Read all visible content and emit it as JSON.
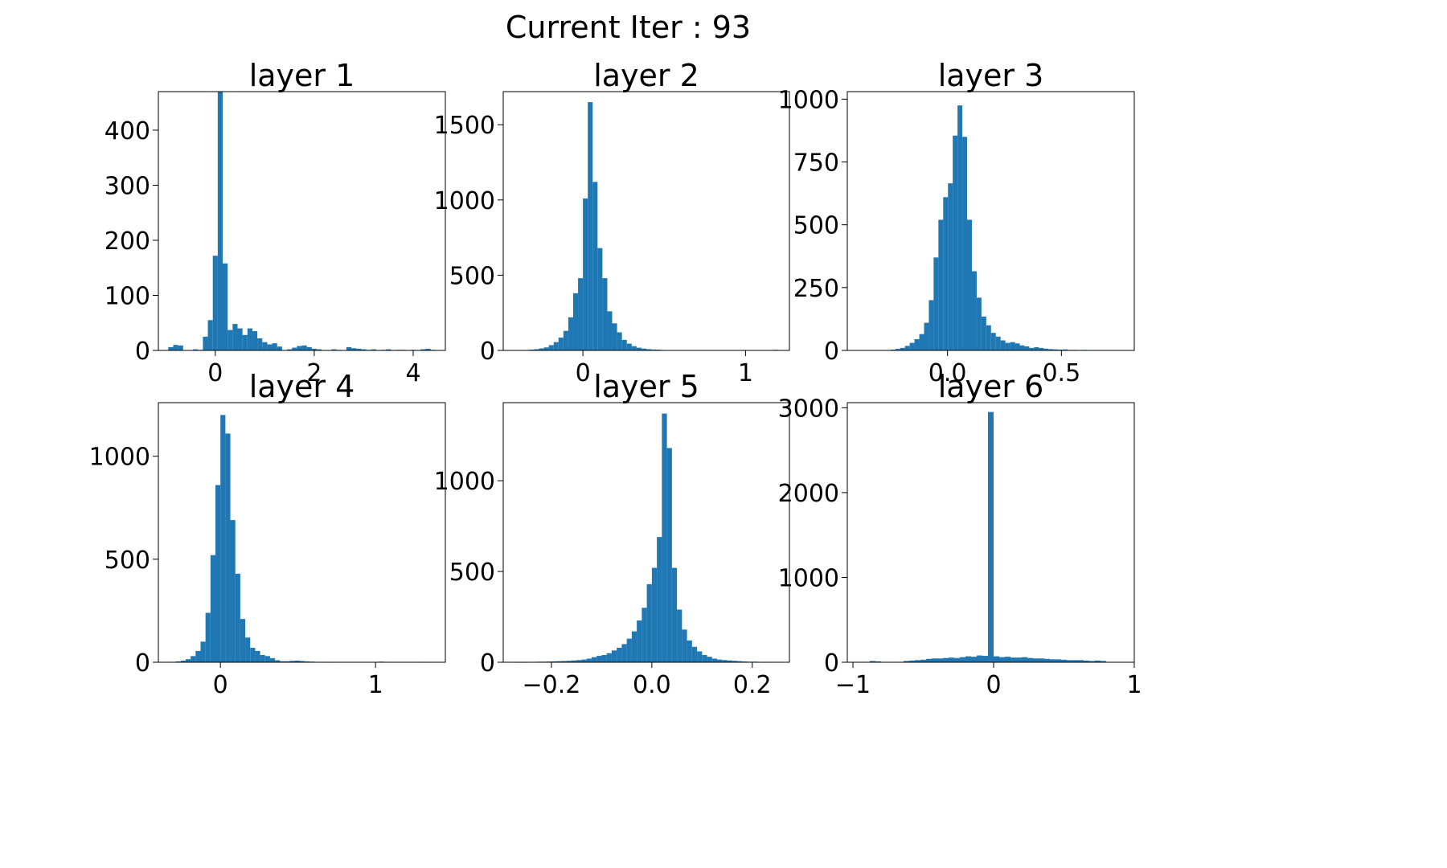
{
  "figure": {
    "suptitle": "Current Iter : 93",
    "bar_color": "#1f77b4"
  },
  "chart_data": [
    {
      "type": "bar",
      "title": "layer 1",
      "xlabel": "",
      "ylabel": "",
      "xlim": [
        -1.15,
        4.65
      ],
      "ylim": [
        0,
        470
      ],
      "xticks": [
        0,
        2,
        4
      ],
      "xtick_labels": [
        "0",
        "2",
        "4"
      ],
      "yticks": [
        0,
        100,
        200,
        300,
        400
      ],
      "ytick_labels": [
        "0",
        "100",
        "200",
        "300",
        "400"
      ],
      "bin_width": 0.1,
      "bin_starts": [
        -0.95,
        -0.85,
        -0.75,
        -0.65,
        -0.55,
        -0.45,
        -0.35,
        -0.25,
        -0.15,
        -0.05,
        0.05,
        0.15,
        0.25,
        0.35,
        0.45,
        0.55,
        0.65,
        0.75,
        0.85,
        0.95,
        1.05,
        1.15,
        1.25,
        1.35,
        1.45,
        1.55,
        1.65,
        1.75,
        1.85,
        1.95,
        2.05,
        2.15,
        2.25,
        2.35,
        2.45,
        2.55,
        2.65,
        2.75,
        2.85,
        2.95,
        3.05,
        3.15,
        3.25,
        3.35,
        3.45,
        3.55,
        3.65,
        3.75,
        3.85,
        3.95,
        4.05,
        4.15,
        4.25,
        4.35
      ],
      "values": [
        6,
        10,
        9,
        0,
        0,
        2,
        1,
        25,
        55,
        172,
        470,
        158,
        37,
        48,
        40,
        28,
        40,
        35,
        22,
        15,
        11,
        13,
        7,
        0,
        2,
        5,
        8,
        9,
        6,
        3,
        2,
        0,
        0,
        2,
        1,
        0,
        6,
        4,
        3,
        2,
        1,
        2,
        0,
        1,
        2,
        0,
        1,
        1,
        0,
        1,
        0,
        2,
        3,
        1
      ]
    },
    {
      "type": "bar",
      "title": "layer 2",
      "xlabel": "",
      "ylabel": "",
      "xlim": [
        -0.49,
        1.27
      ],
      "ylim": [
        0,
        1720
      ],
      "xticks": [
        0,
        1
      ],
      "xtick_labels": [
        "0",
        "1"
      ],
      "yticks": [
        0,
        500,
        1000,
        1500
      ],
      "ytick_labels": [
        "0",
        "500",
        "1000",
        "1500"
      ],
      "bin_width": 0.03,
      "bin_starts": [
        -0.39,
        -0.36,
        -0.33,
        -0.3,
        -0.27,
        -0.24,
        -0.21,
        -0.18,
        -0.15,
        -0.12,
        -0.09,
        -0.06,
        -0.03,
        0.0,
        0.03,
        0.06,
        0.09,
        0.12,
        0.15,
        0.18,
        0.21,
        0.24,
        0.27,
        0.3,
        0.33,
        0.36,
        0.39,
        0.42,
        0.45,
        0.48,
        1.17
      ],
      "values": [
        2,
        3,
        5,
        8,
        13,
        20,
        35,
        55,
        85,
        130,
        220,
        380,
        480,
        1010,
        1650,
        1120,
        680,
        480,
        260,
        180,
        120,
        70,
        45,
        28,
        18,
        12,
        8,
        6,
        5,
        3,
        4
      ]
    },
    {
      "type": "bar",
      "title": "layer 3",
      "xlabel": "",
      "ylabel": "",
      "xlim": [
        -0.44,
        0.82
      ],
      "ylim": [
        0,
        1030
      ],
      "xticks": [
        0,
        0.5
      ],
      "xtick_labels": [
        "0.0",
        "0.5"
      ],
      "yticks": [
        0,
        250,
        500,
        750,
        1000
      ],
      "ytick_labels": [
        "0",
        "250",
        "500",
        "750",
        "1000"
      ],
      "bin_width": 0.021,
      "bin_starts": [
        -0.25,
        -0.229,
        -0.208,
        -0.187,
        -0.166,
        -0.145,
        -0.124,
        -0.103,
        -0.082,
        -0.061,
        -0.04,
        -0.019,
        0.002,
        0.023,
        0.044,
        0.065,
        0.086,
        0.107,
        0.128,
        0.149,
        0.17,
        0.191,
        0.212,
        0.233,
        0.254,
        0.275,
        0.296,
        0.317,
        0.338,
        0.359,
        0.38,
        0.401,
        0.422,
        0.443,
        0.464,
        0.485,
        0.506,
        0.527,
        0.548,
        0.569,
        0.59,
        0.611,
        0.632,
        0.653,
        0.674
      ],
      "values": [
        3,
        6,
        10,
        18,
        30,
        45,
        65,
        110,
        200,
        370,
        520,
        610,
        665,
        855,
        975,
        850,
        520,
        315,
        210,
        135,
        100,
        70,
        55,
        40,
        30,
        33,
        28,
        20,
        16,
        10,
        13,
        10,
        7,
        5,
        4,
        3,
        4,
        2,
        2,
        1,
        2,
        1,
        1,
        1,
        1
      ]
    },
    {
      "type": "bar",
      "title": "layer 4",
      "xlabel": "",
      "ylabel": "",
      "xlim": [
        -0.4,
        1.45
      ],
      "ylim": [
        0,
        1260
      ],
      "xticks": [
        0,
        1
      ],
      "xtick_labels": [
        "0",
        "1"
      ],
      "yticks": [
        0,
        500,
        1000
      ],
      "ytick_labels": [
        "0",
        "500",
        "1000"
      ],
      "bin_width": 0.032,
      "bin_starts": [
        -0.32,
        -0.288,
        -0.256,
        -0.224,
        -0.192,
        -0.16,
        -0.128,
        -0.096,
        -0.064,
        -0.032,
        0.0,
        0.032,
        0.064,
        0.096,
        0.128,
        0.16,
        0.192,
        0.224,
        0.256,
        0.288,
        0.32,
        0.352,
        0.384,
        0.416,
        0.448,
        0.48,
        0.512,
        0.544,
        0.576,
        0.608,
        0.64,
        0.672,
        0.704,
        1.02,
        1.05,
        1.28,
        1.31
      ],
      "values": [
        2,
        4,
        8,
        15,
        30,
        55,
        100,
        240,
        520,
        860,
        1200,
        1110,
        690,
        430,
        210,
        120,
        70,
        55,
        35,
        30,
        20,
        10,
        5,
        5,
        7,
        8,
        6,
        4,
        3,
        2,
        2,
        1,
        1,
        3,
        2,
        2,
        1
      ]
    },
    {
      "type": "bar",
      "title": "layer 5",
      "xlabel": "",
      "ylabel": "",
      "xlim": [
        -0.296,
        0.274
      ],
      "ylim": [
        0,
        1430
      ],
      "xticks": [
        -0.2,
        0.0,
        0.2
      ],
      "xtick_labels": [
        "−0.2",
        "0.0",
        "0.2"
      ],
      "yticks": [
        0,
        500,
        1000
      ],
      "ytick_labels": [
        "0",
        "500",
        "1000"
      ],
      "bin_width": 0.01,
      "bin_starts": [
        -0.27,
        -0.26,
        -0.25,
        -0.24,
        -0.23,
        -0.22,
        -0.21,
        -0.2,
        -0.19,
        -0.18,
        -0.17,
        -0.16,
        -0.15,
        -0.14,
        -0.13,
        -0.12,
        -0.11,
        -0.1,
        -0.09,
        -0.08,
        -0.07,
        -0.06,
        -0.05,
        -0.04,
        -0.03,
        -0.02,
        -0.01,
        0.0,
        0.01,
        0.02,
        0.03,
        0.04,
        0.05,
        0.06,
        0.07,
        0.08,
        0.09,
        0.1,
        0.11,
        0.12,
        0.13,
        0.14,
        0.15,
        0.16,
        0.17,
        0.18,
        0.19,
        0.2,
        0.21,
        0.22
      ],
      "values": [
        1,
        1,
        2,
        2,
        3,
        3,
        4,
        5,
        6,
        7,
        8,
        10,
        12,
        15,
        20,
        28,
        35,
        40,
        50,
        65,
        80,
        100,
        130,
        170,
        230,
        300,
        430,
        520,
        690,
        1370,
        1180,
        520,
        290,
        180,
        120,
        85,
        60,
        40,
        30,
        20,
        15,
        12,
        10,
        8,
        6,
        4,
        3,
        3,
        2,
        1
      ]
    },
    {
      "type": "bar",
      "title": "layer 6",
      "xlabel": "",
      "ylabel": "",
      "xlim": [
        -1.04,
        1.0
      ],
      "ylim": [
        0,
        3060
      ],
      "xticks": [
        -1,
        0,
        1
      ],
      "xtick_labels": [
        "−1",
        "0",
        "1"
      ],
      "yticks": [
        0,
        1000,
        2000,
        3000
      ],
      "ytick_labels": [
        "0",
        "1000",
        "2000",
        "3000"
      ],
      "bin_width": 0.04,
      "bin_starts": [
        -1.0,
        -0.96,
        -0.92,
        -0.88,
        -0.84,
        -0.8,
        -0.76,
        -0.72,
        -0.68,
        -0.64,
        -0.6,
        -0.56,
        -0.52,
        -0.48,
        -0.44,
        -0.4,
        -0.36,
        -0.32,
        -0.28,
        -0.24,
        -0.2,
        -0.16,
        -0.12,
        -0.08,
        -0.04,
        0.0,
        0.04,
        0.08,
        0.12,
        0.16,
        0.2,
        0.24,
        0.28,
        0.32,
        0.36,
        0.4,
        0.44,
        0.48,
        0.52,
        0.56,
        0.6,
        0.64,
        0.68,
        0.72,
        0.76
      ],
      "values": [
        5,
        0,
        5,
        15,
        10,
        0,
        0,
        0,
        5,
        15,
        20,
        25,
        30,
        40,
        45,
        45,
        50,
        55,
        50,
        60,
        70,
        65,
        80,
        75,
        2950,
        70,
        60,
        65,
        55,
        55,
        60,
        50,
        45,
        45,
        40,
        35,
        35,
        30,
        25,
        25,
        25,
        20,
        15,
        20,
        15
      ]
    }
  ]
}
